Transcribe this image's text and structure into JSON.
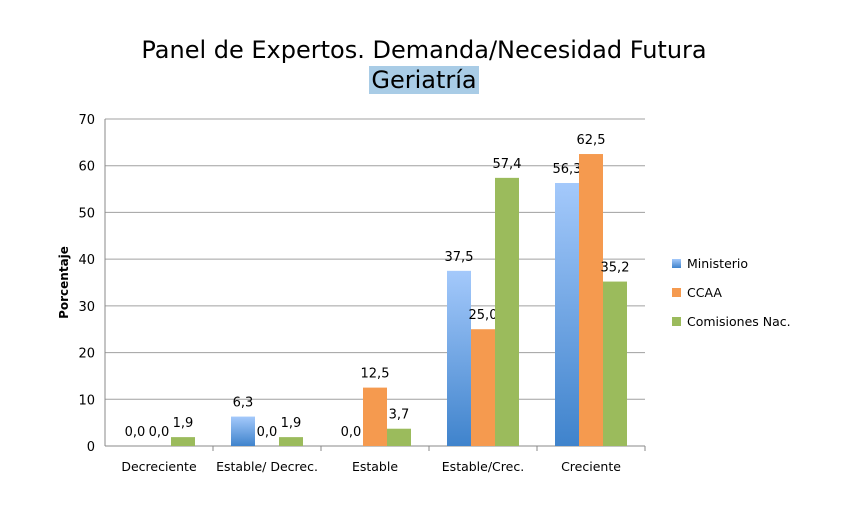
{
  "chart_data": {
    "type": "bar",
    "title": "Panel de Expertos. Demanda/Necesidad Futura",
    "subtitle": "Geriatría",
    "ylabel": "Porcentaje",
    "xlabel": "",
    "ylim": [
      0,
      70
    ],
    "yticks": [
      0,
      10,
      20,
      30,
      40,
      50,
      60,
      70
    ],
    "grid": true,
    "legend_position": "right",
    "categories": [
      "Decreciente",
      "Estable/ Decrec.",
      "Estable",
      "Estable/Crec.",
      "Creciente"
    ],
    "series": [
      {
        "name": "Ministerio",
        "color": "#6fa8ef",
        "values": [
          0.0,
          6.3,
          0.0,
          37.5,
          56.3
        ],
        "labels": [
          "0,0",
          "6,3",
          "0,0",
          "37,5",
          "56,3"
        ]
      },
      {
        "name": "CCAA",
        "color": "#f59a4f",
        "values": [
          0.0,
          0.0,
          12.5,
          25.0,
          62.5
        ],
        "labels": [
          "0,0",
          "0,0",
          "12,5",
          "25,0",
          "62,5"
        ]
      },
      {
        "name": "Comisiones  Nac.",
        "color": "#9bbb5c",
        "values": [
          1.9,
          1.9,
          3.7,
          57.4,
          35.2
        ],
        "labels": [
          "1,9",
          "1,9",
          "3,7",
          "57,4",
          "35,2"
        ]
      }
    ]
  }
}
